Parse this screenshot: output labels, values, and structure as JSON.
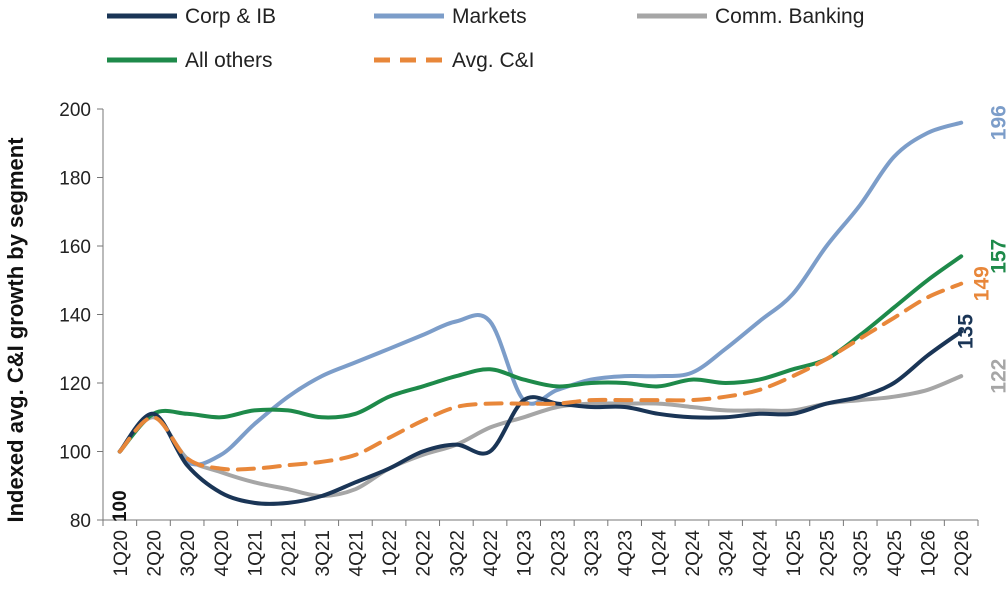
{
  "chart_data": {
    "type": "line",
    "ylabel": "Indexed avg. C&I growth by segment",
    "ylim": [
      80,
      200
    ],
    "yticks": [
      80,
      100,
      120,
      140,
      160,
      180,
      200
    ],
    "categories": [
      "1Q20",
      "2Q20",
      "3Q20",
      "4Q20",
      "1Q21",
      "2Q21",
      "3Q21",
      "4Q21",
      "1Q22",
      "2Q22",
      "3Q22",
      "4Q22",
      "1Q23",
      "2Q23",
      "3Q23",
      "4Q23",
      "1Q24",
      "2Q24",
      "3Q24",
      "4Q24",
      "1Q25",
      "2Q25",
      "3Q25",
      "4Q25",
      "1Q26",
      "2Q26"
    ],
    "legend_position": "top",
    "start_label": "100",
    "series": [
      {
        "name": "Corp & IB",
        "color": "#1a3556",
        "dash": false,
        "end_label": "135",
        "values": [
          100,
          111,
          96,
          88,
          85,
          85,
          87,
          91,
          95,
          100,
          102,
          100,
          115,
          114,
          113,
          113,
          111,
          110,
          110,
          111,
          111,
          114,
          116,
          120,
          128,
          135
        ]
      },
      {
        "name": "Markets",
        "color": "#7c9dc9",
        "dash": false,
        "end_label": "196",
        "values": [
          100,
          111,
          97,
          99,
          108,
          116,
          122,
          126,
          130,
          134,
          138,
          138,
          115,
          118,
          121,
          122,
          122,
          123,
          130,
          138,
          146,
          160,
          172,
          186,
          193,
          196
        ]
      },
      {
        "name": "Comm. Banking",
        "color": "#a6a6a6",
        "dash": false,
        "end_label": "122",
        "values": [
          100,
          110,
          98,
          94,
          91,
          89,
          87,
          89,
          95,
          99,
          102,
          107,
          110,
          113,
          114,
          114,
          114,
          113,
          112,
          112,
          112,
          114,
          115,
          116,
          118,
          122
        ]
      },
      {
        "name": "All others",
        "color": "#1e8a4a",
        "dash": false,
        "end_label": "157",
        "values": [
          100,
          111,
          111,
          110,
          112,
          112,
          110,
          111,
          116,
          119,
          122,
          124,
          121,
          119,
          120,
          120,
          119,
          121,
          120,
          121,
          124,
          127,
          134,
          142,
          150,
          157
        ]
      },
      {
        "name": "Avg. C&I",
        "color": "#e8873a",
        "dash": true,
        "end_label": "149",
        "values": [
          100,
          110,
          98,
          95,
          95,
          96,
          97,
          99,
          104,
          109,
          113,
          114,
          114,
          114,
          115,
          115,
          115,
          115,
          116,
          118,
          122,
          127,
          133,
          139,
          145,
          149
        ]
      }
    ]
  }
}
